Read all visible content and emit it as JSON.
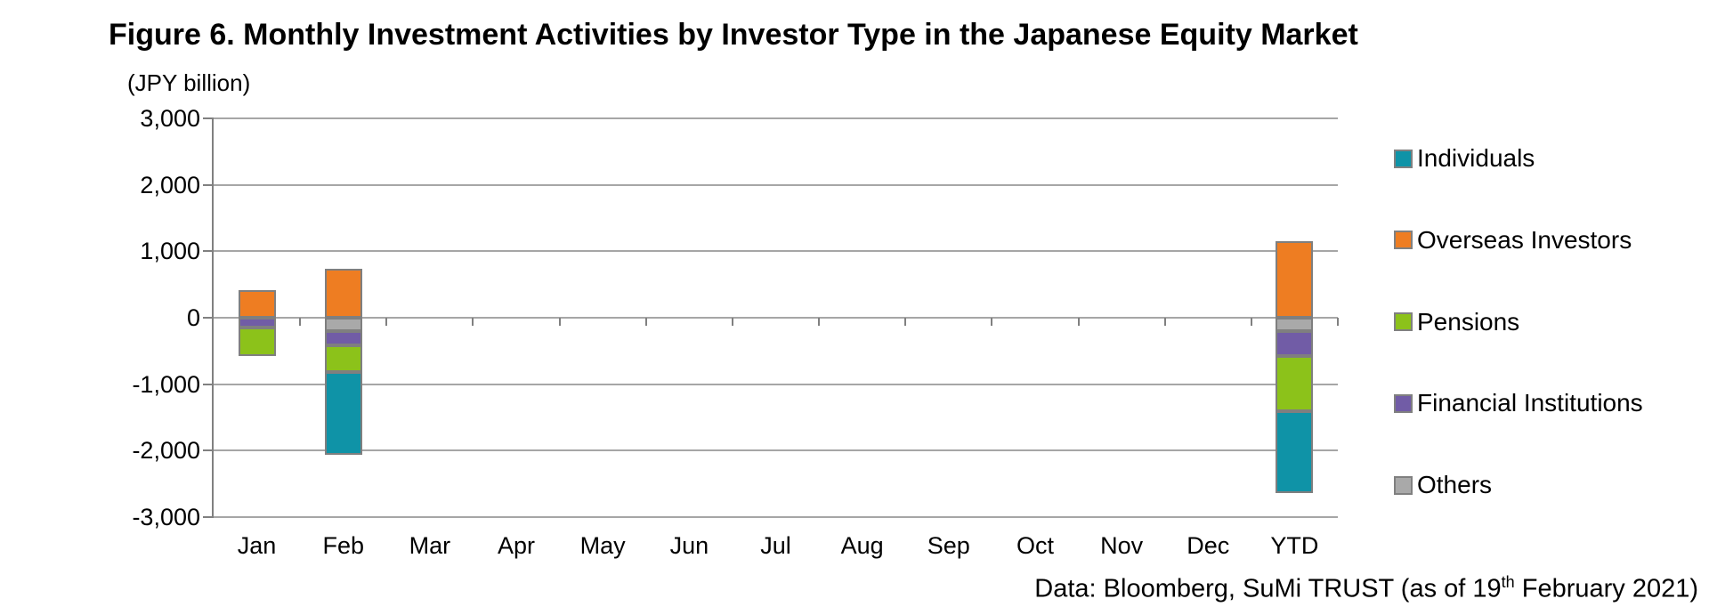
{
  "title": "Figure 6. Monthly Investment Activities by Investor Type in the Japanese Equity Market",
  "unit_label": "(JPY billion)",
  "footer": {
    "prefix": "Data: Bloomberg, SuMi TRUST (as of 19",
    "sup": "th",
    "suffix": " February 2021)"
  },
  "chart_data": {
    "type": "bar",
    "subtype": "stacked-column",
    "unit": "JPY billion",
    "title": "Figure 6. Monthly Investment Activities by Investor Type in the Japanese Equity Market",
    "xlabel": "",
    "ylabel": "(JPY billion)",
    "ylim": [
      -3000,
      3000
    ],
    "ytick_step": 1000,
    "ytick_labels": [
      "3,000",
      "2,000",
      "1,000",
      "0",
      "-1,000",
      "-2,000",
      "-3,000"
    ],
    "grid": true,
    "grid_color": "#A6A6A6",
    "axis_color": "#808080",
    "bar_border_color": "#7F7F7F",
    "legend_position": "right",
    "categories": [
      "Jan",
      "Feb",
      "Mar",
      "Apr",
      "May",
      "Jun",
      "Jul",
      "Aug",
      "Sep",
      "Oct",
      "Nov",
      "Dec",
      "YTD"
    ],
    "series": [
      {
        "name": "Individuals",
        "color": "#0F93A7",
        "values": [
          0,
          -1240,
          0,
          0,
          0,
          0,
          0,
          0,
          0,
          0,
          0,
          0,
          -1240
        ]
      },
      {
        "name": "Overseas Investors",
        "color": "#EE7D22",
        "values": [
          420,
          730,
          0,
          0,
          0,
          0,
          0,
          0,
          0,
          0,
          0,
          0,
          1150
        ]
      },
      {
        "name": "Pensions",
        "color": "#8CC21A",
        "values": [
          -430,
          -400,
          0,
          0,
          0,
          0,
          0,
          0,
          0,
          0,
          0,
          0,
          -830
        ]
      },
      {
        "name": "Financial Institutions",
        "color": "#715CA6",
        "values": [
          -150,
          -220,
          0,
          0,
          0,
          0,
          0,
          0,
          0,
          0,
          0,
          0,
          -370
        ]
      },
      {
        "name": "Others",
        "color": "#A9A9A9",
        "values": [
          0,
          -200,
          0,
          0,
          0,
          0,
          0,
          0,
          0,
          0,
          0,
          0,
          -200
        ]
      }
    ],
    "negative_stack_order": "reverse-of-series"
  }
}
